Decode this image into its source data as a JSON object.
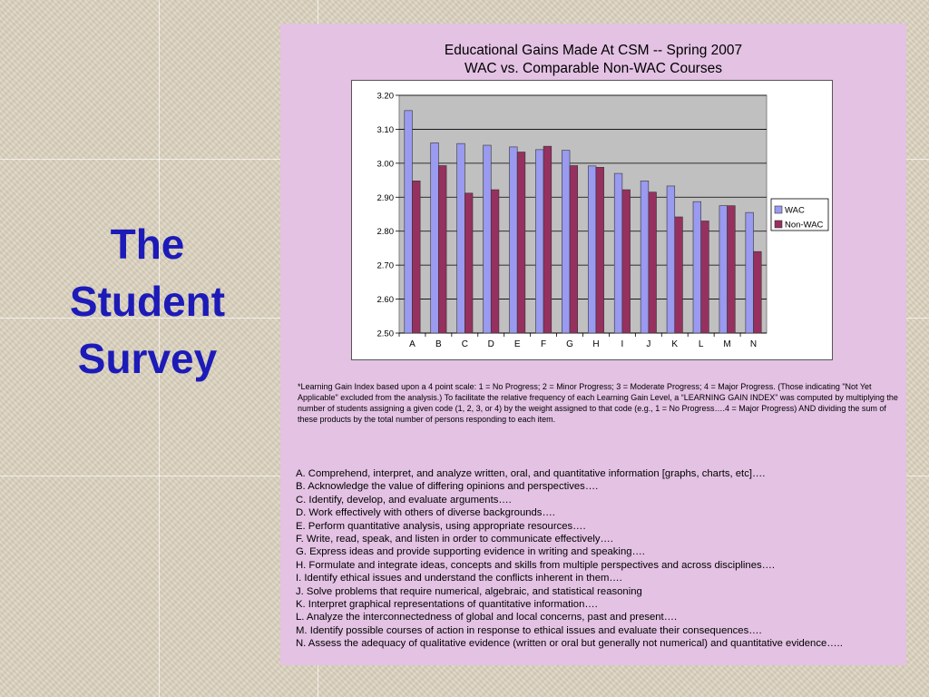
{
  "slide": {
    "title_lines": [
      "The",
      "Student",
      "Survey"
    ]
  },
  "colors": {
    "panel_bg": "#e3c2e3",
    "title_color": "#1c1ab8",
    "wac": "#9a9af0",
    "non_wac": "#96305f",
    "plot_bg": "#c0c0c0"
  },
  "chart_data": {
    "type": "bar",
    "title": "Educational Gains Made At CSM -- Spring 2007",
    "subtitle": "WAC vs. Comparable Non-WAC Courses",
    "categories": [
      "A",
      "B",
      "C",
      "D",
      "E",
      "F",
      "G",
      "H",
      "I",
      "J",
      "K",
      "L",
      "M",
      "N"
    ],
    "series": [
      {
        "name": "WAC",
        "color": "#9a9af0",
        "values": [
          3.155,
          3.06,
          3.058,
          3.053,
          3.048,
          3.04,
          3.038,
          2.992,
          2.97,
          2.948,
          2.933,
          2.887,
          2.875,
          2.855
        ]
      },
      {
        "name": "Non-WAC",
        "color": "#96305f",
        "values": [
          2.948,
          2.993,
          2.912,
          2.922,
          3.033,
          3.05,
          2.993,
          2.988,
          2.922,
          2.915,
          2.842,
          2.83,
          2.875,
          2.74
        ]
      }
    ],
    "ylim": [
      2.5,
      3.2
    ],
    "yticks": [
      "2.50",
      "2.60",
      "2.70",
      "2.80",
      "2.90",
      "3.00",
      "3.10",
      "3.20"
    ],
    "grid": true,
    "legend_position": "right"
  },
  "footnote": "*Learning Gain Index based upon a 4 point scale:  1 = No Progress; 2 = Minor Progress; 3 = Moderate Progress; 4 = Major Progress. (Those indicating \"Not Yet Applicable\" excluded from the analysis.)  To facilitate the relative frequency of each Learning Gain Level, a “LEARNING GAIN INDEX” was computed by multiplying the number of students assigning a given code (1, 2, 3, or 4) by the weight assigned to that code (e.g., 1 = No Progress….4 = Major Progress) AND dividing the sum of these products by the total number of persons responding to each item.",
  "criteria": [
    "A.  Comprehend, interpret, and analyze written, oral, and quantitative information [graphs, charts, etc]….",
    "B.  Acknowledge the value of differing opinions and perspectives….",
    "C.  Identify, develop, and evaluate arguments….",
    "D.  Work effectively with others of diverse backgrounds….",
    "E.  Perform quantitative analysis, using appropriate resources….",
    "F.  Write, read, speak, and listen in order to communicate effectively….",
    "G.  Express ideas and provide supporting evidence in writing and speaking….",
    "H.  Formulate and integrate ideas, concepts and skills from multiple perspectives and across disciplines….",
    "I. Identify ethical issues and understand the conflicts inherent in them….",
    "J.  Solve problems that require numerical, algebraic, and statistical reasoning",
    "K. Interpret graphical representations of quantitative information….",
    "L.  Analyze the interconnectedness of global and local concerns, past and present….",
    "M.  Identify possible courses of action in response to ethical issues and evaluate their consequences….",
    "N.  Assess the adequacy of qualitative evidence (written or oral but generally not numerical) and quantitative evidence….."
  ]
}
